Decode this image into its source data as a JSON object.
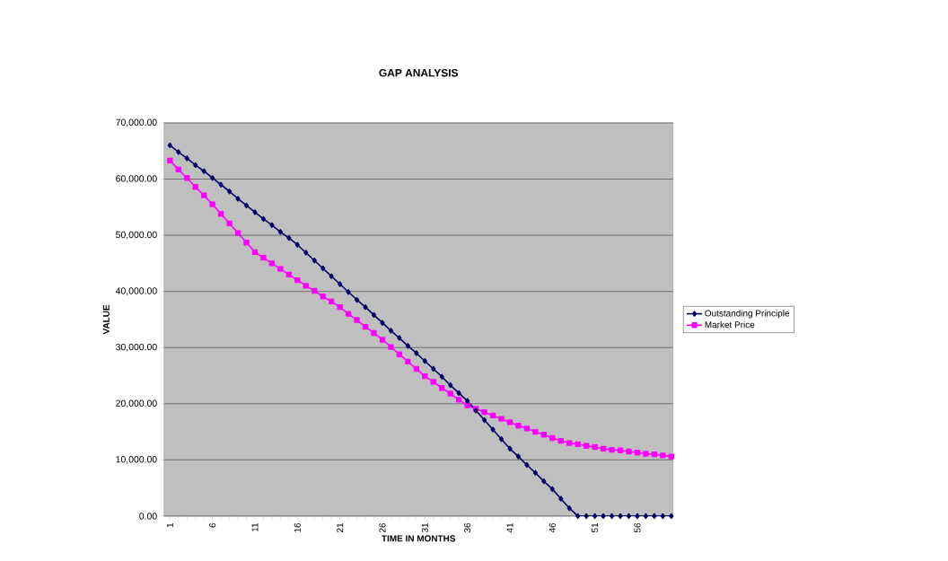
{
  "chart_data": {
    "type": "line",
    "title": "GAP ANALYSIS",
    "xlabel": "TIME IN MONTHS",
    "ylabel": "VALUE",
    "categories": [
      "1",
      null,
      null,
      null,
      null,
      "6",
      null,
      null,
      null,
      null,
      "11",
      null,
      null,
      null,
      null,
      "16",
      null,
      null,
      null,
      null,
      "21",
      null,
      null,
      null,
      null,
      "26",
      null,
      null,
      null,
      null,
      "31",
      null,
      null,
      null,
      null,
      "36",
      null,
      null,
      null,
      null,
      "41",
      null,
      null,
      null,
      null,
      "46",
      null,
      null,
      null,
      null,
      "51",
      null,
      null,
      null,
      null,
      "56",
      null,
      null,
      null,
      null
    ],
    "series": [
      {
        "name": "Outstanding Principle",
        "color": "#000066",
        "marker": "diamond",
        "values": [
          66000,
          64800,
          63700,
          62500,
          61400,
          60200,
          59000,
          57800,
          56500,
          55300,
          54100,
          52900,
          51800,
          50600,
          49500,
          48300,
          46900,
          45500,
          44100,
          42700,
          41300,
          39900,
          38500,
          37200,
          35800,
          34400,
          33000,
          31700,
          30300,
          29000,
          27600,
          26200,
          24800,
          23300,
          21900,
          20500,
          18800,
          17100,
          15400,
          13700,
          12000,
          10600,
          9100,
          7700,
          6200,
          4800,
          3100,
          1400,
          0,
          0,
          0,
          0,
          0,
          0,
          0,
          0,
          0,
          0,
          0,
          0
        ]
      },
      {
        "name": "Market Price",
        "color": "#ff00ff",
        "marker": "square",
        "values": [
          63300,
          61700,
          60200,
          58600,
          57100,
          55500,
          53800,
          52100,
          50400,
          48700,
          47000,
          46000,
          45000,
          44000,
          43000,
          42000,
          41000,
          40100,
          39100,
          38200,
          37200,
          36000,
          34900,
          33700,
          32600,
          31400,
          30100,
          28800,
          27500,
          26200,
          24900,
          23900,
          22800,
          21800,
          20700,
          19700,
          19100,
          18500,
          17900,
          17300,
          16700,
          16100,
          15600,
          15000,
          14500,
          13900,
          13400,
          13000,
          12800,
          12500,
          12300,
          12000,
          11800,
          11700,
          11500,
          11300,
          11100,
          11000,
          10800,
          10600
        ]
      }
    ],
    "ylim": [
      0,
      70000
    ],
    "yticks": [
      {
        "value": 0,
        "label": "0.00"
      },
      {
        "value": 10000,
        "label": "10,000.00"
      },
      {
        "value": 20000,
        "label": "20,000.00"
      },
      {
        "value": 30000,
        "label": "30,000.00"
      },
      {
        "value": 40000,
        "label": "40,000.00"
      },
      {
        "value": 50000,
        "label": "50,000.00"
      },
      {
        "value": 60000,
        "label": "60,000.00"
      },
      {
        "value": 70000,
        "label": "70,000.00"
      }
    ],
    "grid": "y",
    "legend": "right",
    "line_style": "solid"
  }
}
